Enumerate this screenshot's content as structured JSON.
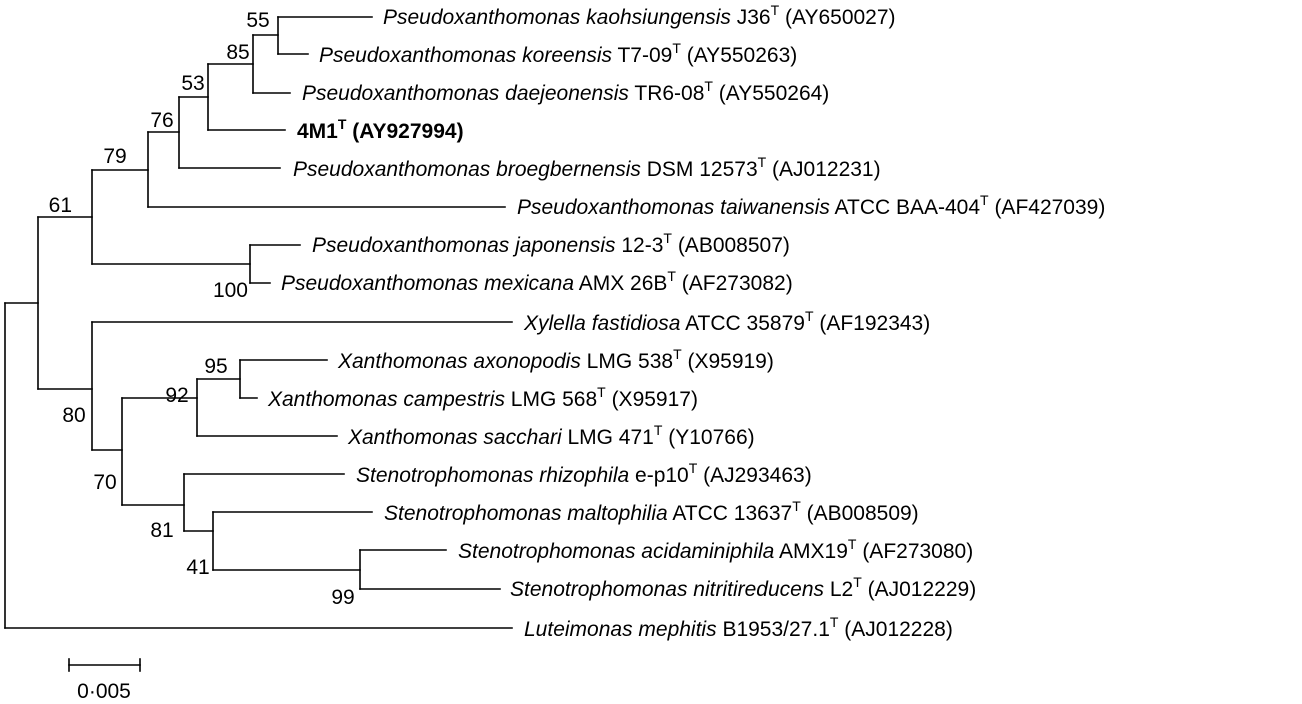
{
  "tree": {
    "leaves": [
      {
        "genus": "Pseudoxanthomonas",
        "species": "kaohsiungensis",
        "strain": "J36",
        "type_mark": "T",
        "accession": "(AY650027)"
      },
      {
        "genus": "Pseudoxanthomonas",
        "species": "koreensis",
        "strain": "T7-09",
        "type_mark": "T",
        "accession": "(AY550263)"
      },
      {
        "genus": "Pseudoxanthomonas",
        "species": "daejeonensis",
        "strain": "TR6-08",
        "type_mark": "T",
        "accession": "(AY550264)"
      },
      {
        "genus": "",
        "species": "",
        "strain": "4M1",
        "type_mark": "T",
        "accession": "(AY927994)",
        "bold": true
      },
      {
        "genus": "Pseudoxanthomonas",
        "species": "broegbernensis",
        "strain": "DSM 12573",
        "type_mark": "T",
        "accession": "(AJ012231)"
      },
      {
        "genus": "Pseudoxanthomonas",
        "species": "taiwanensis",
        "strain": "ATCC BAA-404",
        "type_mark": "T",
        "accession": "(AF427039)"
      },
      {
        "genus": "Pseudoxanthomonas",
        "species": "japonensis",
        "strain": "12-3",
        "type_mark": "T",
        "accession": "(AB008507)"
      },
      {
        "genus": "Pseudoxanthomonas",
        "species": "mexicana",
        "strain": "AMX 26B",
        "type_mark": "T",
        "accession": "(AF273082)"
      },
      {
        "genus": "Xylella",
        "species": "fastidiosa",
        "strain": "ATCC 35879",
        "type_mark": "T",
        "accession": "(AF192343)"
      },
      {
        "genus": "Xanthomonas",
        "species": "axonopodis",
        "strain": "LMG 538",
        "type_mark": "T",
        "accession": "(X95919)"
      },
      {
        "genus": "Xanthomonas",
        "species": "campestris",
        "strain": "LMG 568",
        "type_mark": "T",
        "accession": "(X95917)"
      },
      {
        "genus": "Xanthomonas",
        "species": "sacchari",
        "strain": "LMG 471",
        "type_mark": "T",
        "accession": "(Y10766)"
      },
      {
        "genus": "Stenotrophomonas",
        "species": "rhizophila",
        "strain": "e-p10",
        "type_mark": "T",
        "accession": "(AJ293463)"
      },
      {
        "genus": "Stenotrophomonas",
        "species": "maltophilia",
        "strain": "ATCC 13637",
        "type_mark": "T",
        "accession": "(AB008509)"
      },
      {
        "genus": "Stenotrophomonas",
        "species": "acidaminiphila",
        "strain": "AMX19",
        "type_mark": "T",
        "accession": "(AF273080)"
      },
      {
        "genus": "Stenotrophomonas",
        "species": "nitritireducens",
        "strain": "L2",
        "type_mark": "T",
        "accession": "(AJ012229)"
      },
      {
        "genus": "Luteimonas",
        "species": "mephitis",
        "strain": "B1953/27.1",
        "type_mark": "T",
        "accession": "(AJ012228)"
      }
    ],
    "bootstrap": [
      "55",
      "85",
      "53",
      "76",
      "79",
      "61",
      "100",
      "95",
      "92",
      "80",
      "70",
      "81",
      "41",
      "99"
    ],
    "scale_label": "0·005"
  }
}
